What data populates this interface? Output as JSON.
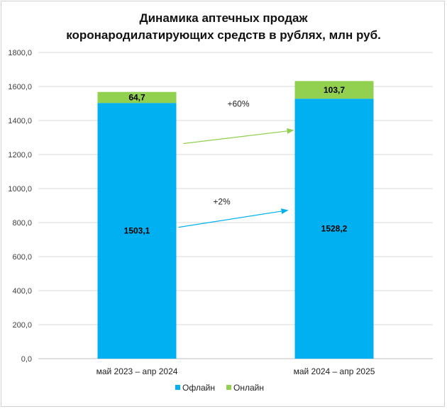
{
  "chart_data": {
    "type": "bar",
    "stacked": true,
    "title_line1": "Динамика аптечных продаж",
    "title_line2": "коронародилатирующих средств в рублях, млн руб.",
    "categories": [
      "май 2023 – апр 2024",
      "май 2024 – апр 2025"
    ],
    "series": [
      {
        "name": "Офлайн",
        "color": "#00b0f0",
        "values": [
          1503.1,
          1528.2
        ],
        "labels": [
          "1503,1",
          "1528,2"
        ]
      },
      {
        "name": "Онлайн",
        "color": "#92d050",
        "values": [
          64.7,
          103.7
        ],
        "labels": [
          "64,7",
          "103,7"
        ]
      }
    ],
    "ylim": [
      0,
      1800
    ],
    "yticks": [
      "0,0",
      "200,0",
      "400,0",
      "600,0",
      "800,0",
      "1000,0",
      "1200,0",
      "1400,0",
      "1600,0",
      "1800,0"
    ],
    "grid": true,
    "legend_position": "bottom",
    "annotations": [
      {
        "text": "+60%",
        "series": "Онлайн",
        "color": "#92d050"
      },
      {
        "text": "+2%",
        "series": "Офлайн",
        "color": "#00b0f0"
      }
    ]
  }
}
